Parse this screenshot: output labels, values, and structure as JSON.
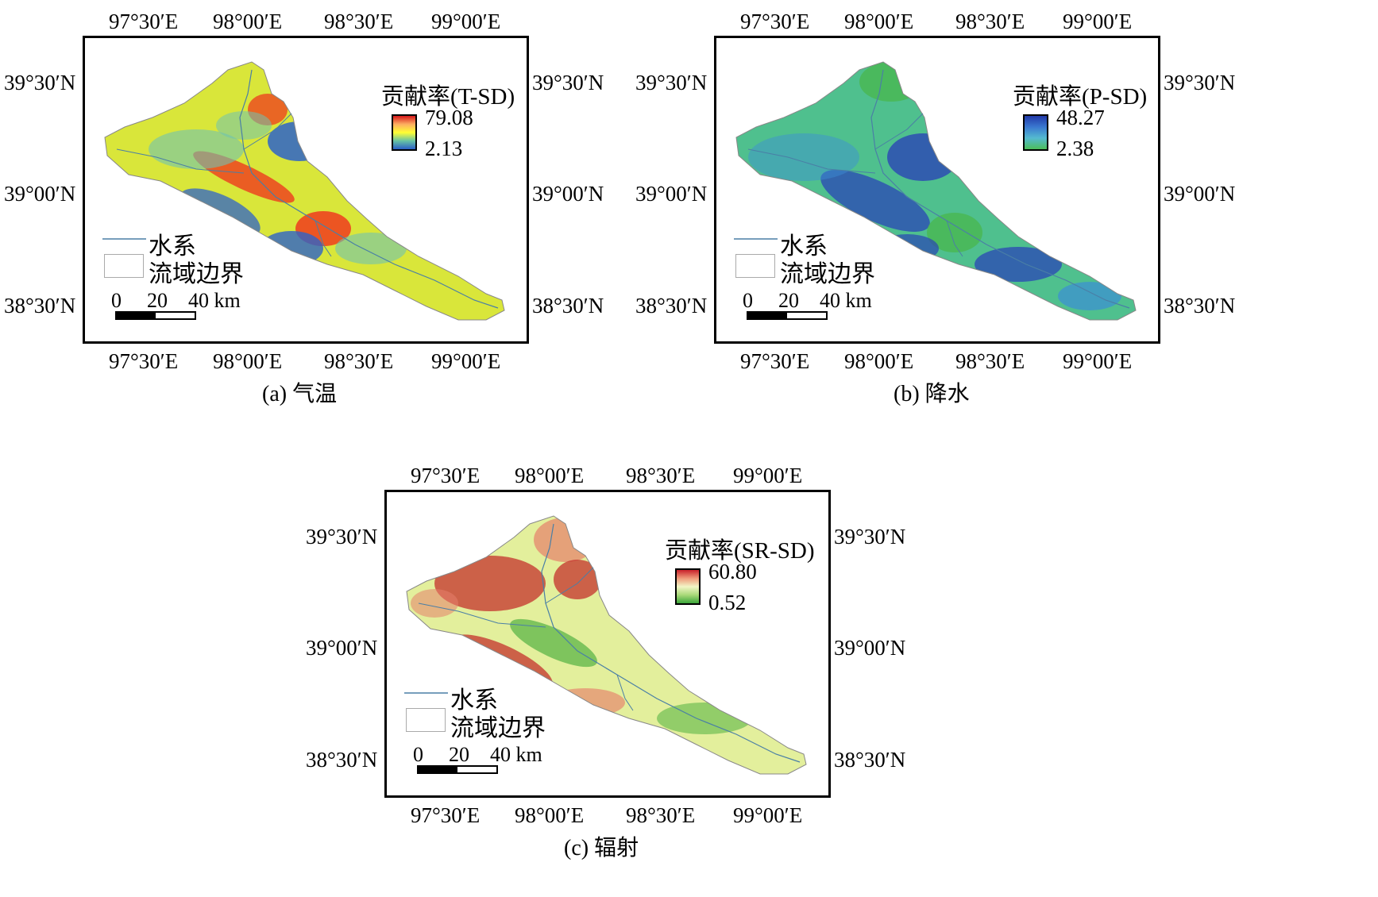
{
  "panels": [
    {
      "caption": "(a) 气温",
      "legend_title": "贡献率(T-SD)",
      "max_label": "79.08",
      "min_label": "2.13",
      "colorbar": [
        "#d7191c",
        "#fdae61",
        "#ffff33",
        "#66c2a5",
        "#2b5fc7"
      ],
      "base_fill": "#d9e63a",
      "patches": [
        {
          "color": "#ee3b1e",
          "desc": "hot"
        },
        {
          "color": "#2d63c9",
          "desc": "cold"
        },
        {
          "color": "#6fc3b0",
          "desc": "mid"
        }
      ]
    },
    {
      "caption": "(b) 降水",
      "legend_title": "贡献率(P-SD)",
      "max_label": "48.27",
      "min_label": "2.38",
      "colorbar": [
        "#2139a8",
        "#3a78d0",
        "#55bad0",
        "#4cbf5a"
      ],
      "base_fill": "#4fc08e",
      "patches": [
        {
          "color": "#2a45b5",
          "desc": "high"
        },
        {
          "color": "#3c8fd6",
          "desc": "mid"
        },
        {
          "color": "#49b651",
          "desc": "low"
        }
      ]
    },
    {
      "caption": "(c) 辐射",
      "legend_title": "贡献率(SR-SD)",
      "max_label": "60.80",
      "min_label": "0.52",
      "colorbar": [
        "#c8202a",
        "#ef9a7a",
        "#f2f5c6",
        "#a9d979",
        "#3ba63a"
      ],
      "base_fill": "#e3ef9c",
      "patches": [
        {
          "color": "#c4312c",
          "desc": "high"
        },
        {
          "color": "#e6806b",
          "desc": "mid-high"
        },
        {
          "color": "#5cb548",
          "desc": "low"
        }
      ]
    }
  ],
  "map_labels": {
    "lon_ticks": [
      "97°30′E",
      "98°00′E",
      "98°30′E",
      "99°00′E"
    ],
    "lat_ticks": [
      "39°30′N",
      "39°00′N",
      "38°30′N"
    ]
  },
  "legend": {
    "river_label": "水系",
    "boundary_label": "流域边界",
    "river_color": "#4a7fa6"
  },
  "scale_bar": {
    "labels": [
      "0",
      "20",
      "40 km"
    ]
  }
}
